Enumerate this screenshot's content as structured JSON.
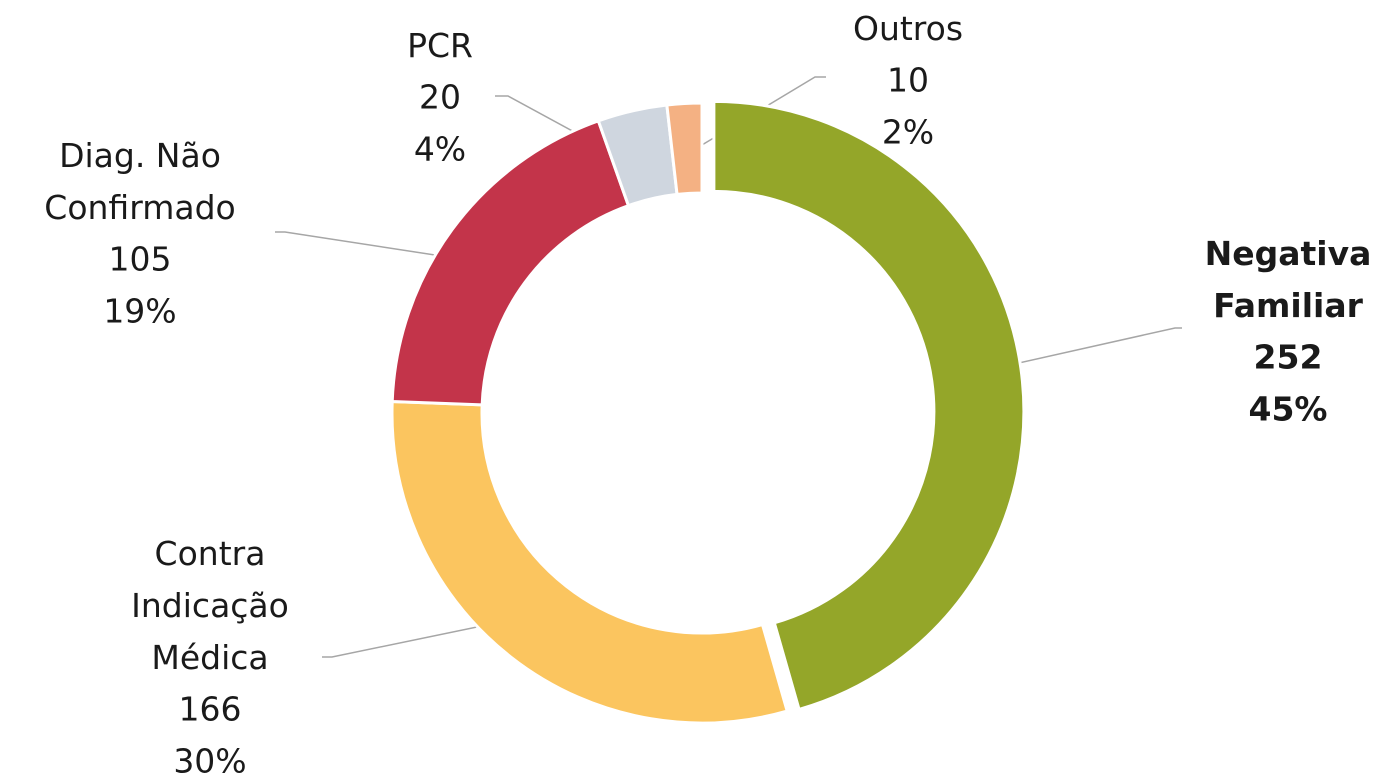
{
  "chart_data": {
    "type": "donut",
    "categories": [
      "Negativa Familiar",
      "Contra Indicação Médica",
      "Diag. Não Confirmado",
      "PCR",
      "Outros"
    ],
    "values": [
      252,
      166,
      105,
      20,
      10
    ],
    "percent_labels": [
      "45%",
      "30%",
      "19%",
      "4%",
      "2%"
    ],
    "colors": [
      "#94a629",
      "#fbc55f",
      "#c3344a",
      "#cfd6df",
      "#f4b183"
    ]
  }
}
